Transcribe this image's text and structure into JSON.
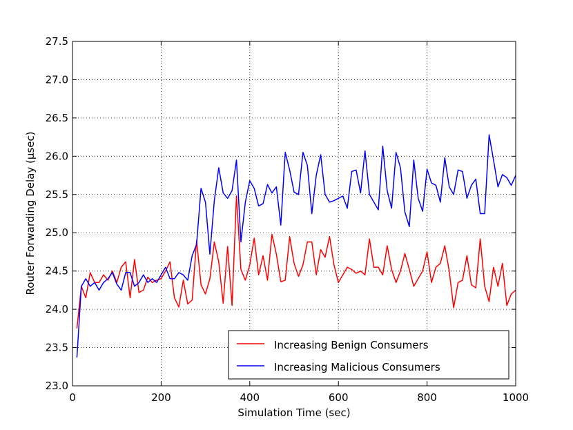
{
  "chart_data": {
    "type": "line",
    "xlabel": "Simulation Time (sec)",
    "ylabel": "Router Forwarding Delay (μsec)",
    "xlim": [
      0,
      1000
    ],
    "xticks": [
      0,
      200,
      400,
      600,
      800,
      1000
    ],
    "ylim": [
      23,
      27.5
    ],
    "yticks": [
      {
        "value": 23,
        "label": "23.0"
      },
      23.5,
      {
        "value": 24,
        "label": "24.0"
      },
      24.5,
      {
        "value": 25,
        "label": "25.0"
      },
      25.5,
      {
        "value": 26,
        "label": "26.0"
      },
      26.5,
      {
        "value": 27,
        "label": "27.0"
      },
      27.5
    ],
    "grid": true,
    "legend": "lower right",
    "x": [
      10,
      20,
      30,
      40,
      50,
      60,
      70,
      80,
      90,
      100,
      110,
      120,
      130,
      140,
      150,
      160,
      170,
      180,
      190,
      200,
      210,
      220,
      230,
      240,
      250,
      260,
      270,
      280,
      290,
      300,
      310,
      320,
      330,
      340,
      350,
      360,
      370,
      380,
      390,
      400,
      410,
      420,
      430,
      440,
      450,
      460,
      470,
      480,
      490,
      500,
      510,
      520,
      530,
      540,
      550,
      560,
      570,
      580,
      590,
      600,
      610,
      620,
      630,
      640,
      650,
      660,
      670,
      680,
      690,
      700,
      710,
      720,
      730,
      740,
      750,
      760,
      770,
      780,
      790,
      800,
      810,
      820,
      830,
      840,
      850,
      860,
      870,
      880,
      890,
      900,
      910,
      920,
      930,
      940,
      950,
      960,
      970,
      980,
      990,
      1000
    ],
    "series": [
      {
        "name": "Increasing Benign Consumers",
        "color": "#ff0000",
        "values": [
          23.75,
          24.3,
          24.15,
          24.48,
          24.35,
          24.35,
          24.45,
          24.38,
          24.5,
          24.35,
          24.55,
          24.62,
          24.15,
          24.65,
          24.22,
          24.25,
          24.42,
          24.35,
          24.38,
          24.4,
          24.5,
          24.62,
          24.15,
          24.03,
          24.38,
          24.07,
          24.12,
          24.9,
          24.32,
          24.2,
          24.4,
          24.88,
          24.62,
          24.08,
          24.82,
          24.05,
          25.48,
          24.52,
          24.38,
          24.58,
          24.93,
          24.45,
          24.7,
          24.38,
          24.98,
          24.72,
          24.36,
          24.38,
          24.95,
          24.6,
          24.43,
          24.58,
          24.88,
          24.88,
          24.45,
          24.78,
          24.68,
          24.95,
          24.58,
          24.35,
          24.45,
          24.55,
          24.52,
          24.47,
          24.5,
          24.45,
          24.92,
          24.55,
          24.55,
          24.45,
          24.83,
          24.52,
          24.35,
          24.5,
          24.73,
          24.52,
          24.3,
          24.4,
          24.5,
          24.75,
          24.35,
          24.55,
          24.6,
          24.83,
          24.5,
          24.02,
          24.35,
          24.38,
          24.7,
          24.32,
          24.28,
          24.92,
          24.3,
          24.1,
          24.55,
          24.3,
          24.6,
          24.05,
          24.2,
          24.25
        ]
      },
      {
        "name": "Increasing Malicious Consumers",
        "color": "#0000ff",
        "values": [
          23.37,
          24.3,
          24.4,
          24.3,
          24.35,
          24.25,
          24.35,
          24.4,
          24.48,
          24.33,
          24.25,
          24.48,
          24.48,
          24.3,
          24.35,
          24.45,
          24.35,
          24.4,
          24.35,
          24.45,
          24.55,
          24.4,
          24.4,
          24.48,
          24.45,
          24.38,
          24.7,
          24.85,
          25.58,
          25.4,
          24.72,
          25.42,
          25.85,
          25.52,
          25.45,
          25.55,
          25.95,
          24.88,
          25.4,
          25.68,
          25.58,
          25.35,
          25.38,
          25.63,
          25.52,
          25.6,
          25.1,
          26.05,
          25.82,
          25.53,
          25.5,
          26.05,
          25.88,
          25.25,
          25.75,
          26.02,
          25.5,
          25.4,
          25.42,
          25.45,
          25.48,
          25.32,
          25.8,
          25.82,
          25.52,
          26.07,
          25.5,
          25.4,
          25.3,
          26.13,
          25.55,
          25.32,
          26.05,
          25.85,
          25.27,
          25.08,
          25.95,
          25.45,
          25.28,
          25.83,
          25.65,
          25.62,
          25.4,
          25.98,
          25.6,
          25.5,
          25.82,
          25.8,
          25.45,
          25.62,
          25.7,
          25.25,
          25.25,
          26.28,
          25.95,
          25.6,
          25.76,
          25.72,
          25.62,
          25.75
        ]
      }
    ]
  }
}
